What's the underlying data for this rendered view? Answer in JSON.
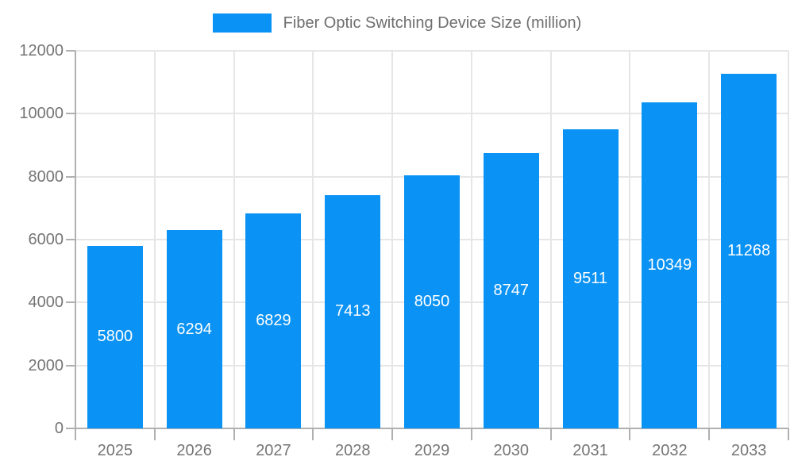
{
  "legend": {
    "label": "Fiber Optic Switching Device Size (million)"
  },
  "chart_data": {
    "type": "bar",
    "title": "Fiber Optic Switching Device Size (million)",
    "categories": [
      "2025",
      "2026",
      "2027",
      "2028",
      "2029",
      "2030",
      "2031",
      "2032",
      "2033"
    ],
    "values": [
      5800,
      6294,
      6829,
      7413,
      8050,
      8747,
      9511,
      10349,
      11268
    ],
    "xlabel": "",
    "ylabel": "",
    "ylim": [
      0,
      12000
    ],
    "yticks": [
      0,
      2000,
      4000,
      6000,
      8000,
      10000,
      12000
    ],
    "grid": true,
    "legend_position": "top",
    "bar_labels": "centered-white"
  },
  "colors": {
    "bar": "#0a92f4",
    "bar_label": "#ffffff",
    "axis_text": "#757575",
    "legend_text": "#6e6e6e",
    "gridline": "#e6e6e6",
    "axis_line": "#b0b0b0",
    "background": "#ffffff"
  }
}
